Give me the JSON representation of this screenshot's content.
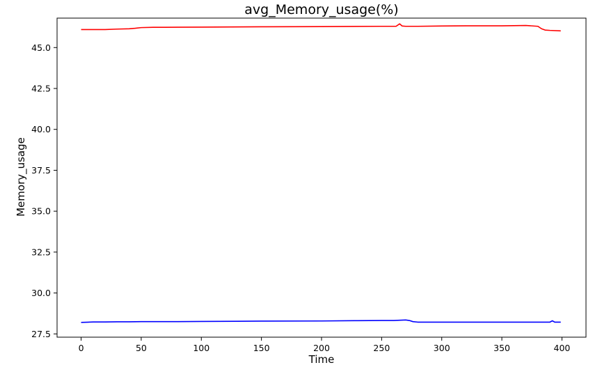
{
  "chart_data": {
    "type": "line",
    "title": "avg_Memory_usage(%)",
    "xlabel": "Time",
    "ylabel": "Memory_usage",
    "xlim": [
      -20,
      420
    ],
    "ylim": [
      27.3,
      46.8
    ],
    "xticks": [
      0,
      50,
      100,
      150,
      200,
      250,
      300,
      350,
      400
    ],
    "xtick_labels": [
      "0",
      "50",
      "100",
      "150",
      "200",
      "250",
      "300",
      "350",
      "400"
    ],
    "yticks": [
      27.5,
      30.0,
      32.5,
      35.0,
      37.5,
      40.0,
      42.5,
      45.0
    ],
    "ytick_labels": [
      "27.5",
      "30.0",
      "32.5",
      "35.0",
      "37.5",
      "40.0",
      "42.5",
      "45.0"
    ],
    "grid": false,
    "legend": false,
    "series": [
      {
        "color": "#ff0000",
        "x": [
          0,
          10,
          20,
          30,
          40,
          45,
          50,
          60,
          70,
          100,
          150,
          200,
          250,
          262,
          265,
          267,
          270,
          280,
          300,
          320,
          350,
          370,
          380,
          383,
          386,
          390,
          399
        ],
        "y": [
          46.1,
          46.1,
          46.1,
          46.13,
          46.15,
          46.18,
          46.22,
          46.24,
          46.24,
          46.25,
          46.27,
          46.28,
          46.3,
          46.3,
          46.45,
          46.32,
          46.3,
          46.3,
          46.32,
          46.33,
          46.33,
          46.35,
          46.3,
          46.15,
          46.07,
          46.05,
          46.02
        ]
      },
      {
        "color": "#0000ff",
        "x": [
          0,
          10,
          20,
          30,
          40,
          50,
          80,
          100,
          130,
          150,
          200,
          230,
          250,
          260,
          270,
          273,
          276,
          280,
          300,
          350,
          390,
          392,
          394,
          399
        ],
        "y": [
          28.2,
          28.23,
          28.23,
          28.24,
          28.24,
          28.25,
          28.25,
          28.26,
          28.27,
          28.28,
          28.29,
          28.31,
          28.32,
          28.32,
          28.35,
          28.32,
          28.25,
          28.22,
          28.22,
          28.22,
          28.22,
          28.3,
          28.22,
          28.22
        ]
      }
    ]
  }
}
